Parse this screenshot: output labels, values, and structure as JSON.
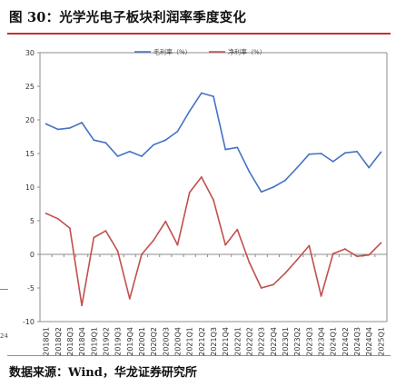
{
  "figure": {
    "title": "图 30：光学光电子板块利润率季度变化",
    "source": "数据来源：Wind，华龙证券研究所",
    "edge_fragment": "24"
  },
  "colors": {
    "series_gross": "#4472c4",
    "series_net": "#c0504d",
    "rule": "#c7312d",
    "grid": "#d9d9d9"
  },
  "chart_data": {
    "type": "line",
    "title": "",
    "xlabel": "",
    "ylabel": "",
    "ylim": [
      -10,
      30
    ],
    "yticks": [
      -10,
      -5,
      0,
      5,
      10,
      15,
      20,
      25,
      30
    ],
    "grid": false,
    "legend_position": "top",
    "categories": [
      "2018Q1",
      "2018Q2",
      "2018Q3",
      "2018Q4",
      "2019Q1",
      "2019Q2",
      "2019Q3",
      "2019Q4",
      "2020Q1",
      "2020Q2",
      "2020Q3",
      "2020Q4",
      "2021Q1",
      "2021Q2",
      "2021Q3",
      "2021Q4",
      "2022Q1",
      "2022Q2",
      "2022Q3",
      "2022Q4",
      "2023Q1",
      "2023Q2",
      "2023Q3",
      "2023Q4",
      "2024Q1",
      "2024Q2",
      "2024Q3",
      "2024Q4",
      "2025Q1"
    ],
    "series": [
      {
        "name": "毛利率（%）",
        "color": "#4472c4",
        "values": [
          19.4,
          18.6,
          18.8,
          19.6,
          17.0,
          16.6,
          14.6,
          15.3,
          14.6,
          16.3,
          17.0,
          18.3,
          21.3,
          24.0,
          23.5,
          15.6,
          15.9,
          12.3,
          9.3,
          10.0,
          11.0,
          12.9,
          14.9,
          15.0,
          13.8,
          15.1,
          15.3,
          12.9,
          15.2
        ]
      },
      {
        "name": "净利率（%）",
        "color": "#c0504d",
        "values": [
          6.1,
          5.3,
          3.9,
          -7.6,
          2.5,
          3.5,
          0.5,
          -6.6,
          0.0,
          2.1,
          4.9,
          1.4,
          9.2,
          11.5,
          8.1,
          1.4,
          3.7,
          -1.2,
          -5.0,
          -4.5,
          -2.8,
          -0.8,
          1.3,
          -6.2,
          0.1,
          0.8,
          -0.3,
          -0.1,
          1.7
        ]
      }
    ]
  }
}
